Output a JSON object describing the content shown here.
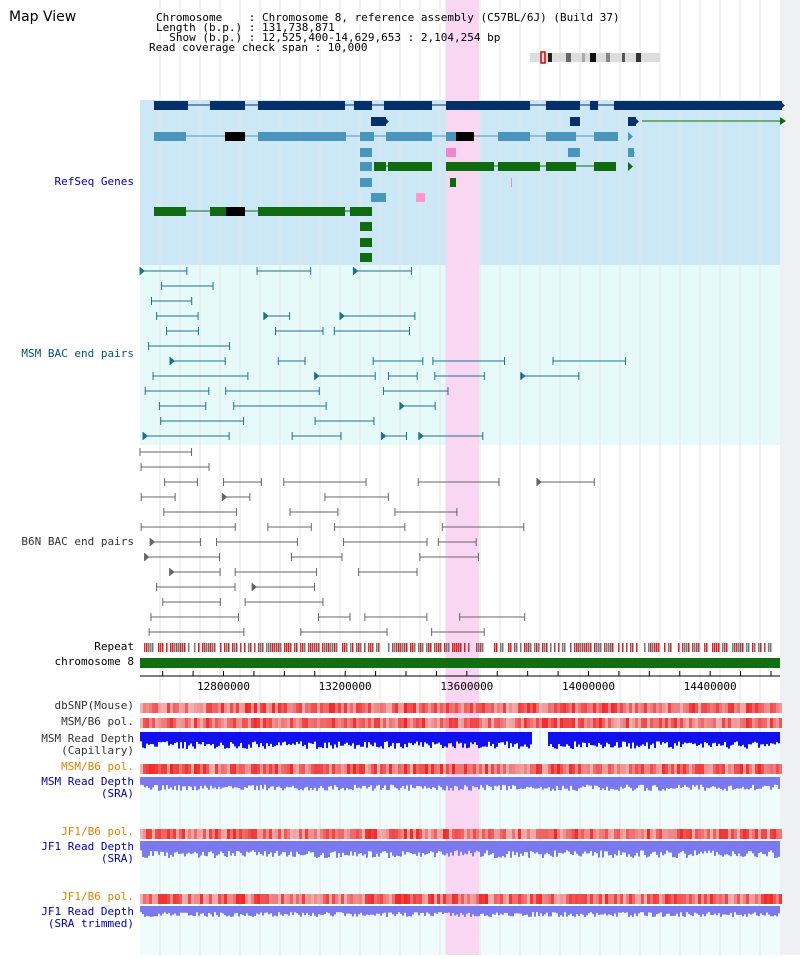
{
  "title": "Map View",
  "header": {
    "chromosome_label": "Chromosome    : Chromosome 8, reference assembly (C57BL/6J) (Build 37)",
    "length_label": "Length (b.p.) : 131,738,871",
    "show_label": "  Show (b.p.) : 12,525,400-14,629,653 : 2,104,254 bp",
    "coverage_label": "Read coverage check span : 10,000"
  },
  "tracks": {
    "refseq": "RefSeq Genes",
    "msm_bac": "MSM BAC end pairs",
    "b6n_bac": "B6N BAC end pairs",
    "repeat": "Repeat",
    "chromosome": "chromosome 8",
    "dbsnp": "dbSNP(Mouse)",
    "msm_b6_pol_1": "MSM/B6 pol.",
    "msm_read_cap": "MSM Read Depth\n(Capillary)",
    "msm_b6_pol_2": "MSM/B6 pol.",
    "msm_read_sra": "MSM Read Depth\n(SRA)",
    "jf1_b6_pol_1": "JF1/B6 pol.",
    "jf1_read_sra": "JF1 Read Depth\n(SRA)",
    "jf1_b6_pol_2": "JF1/B6 pol.",
    "jf1_read_trim": "JF1 Read Depth\n(SRA trimmed)"
  },
  "axis": {
    "start": 12525400,
    "end": 14629653,
    "ticks": [
      "12800000",
      "13200000",
      "13600000",
      "14000000",
      "14400000"
    ]
  },
  "highlight": {
    "start": 13530000,
    "end": 13640000
  },
  "colors": {
    "refseq_bg": "#cce8f6",
    "msm_bg": "#e6fafa",
    "highlight": "#f9d6f2",
    "gene_navy": "#06306a",
    "gene_blue": "#4a95bb",
    "gene_green": "#106a10",
    "msm_line": "#1d7193",
    "b6n_line": "#666666",
    "chromosome_bar": "#107010",
    "read_depth_cap": "#1111ee",
    "read_depth_sra": "#7a7aee",
    "pol_red": "#ee3333"
  }
}
